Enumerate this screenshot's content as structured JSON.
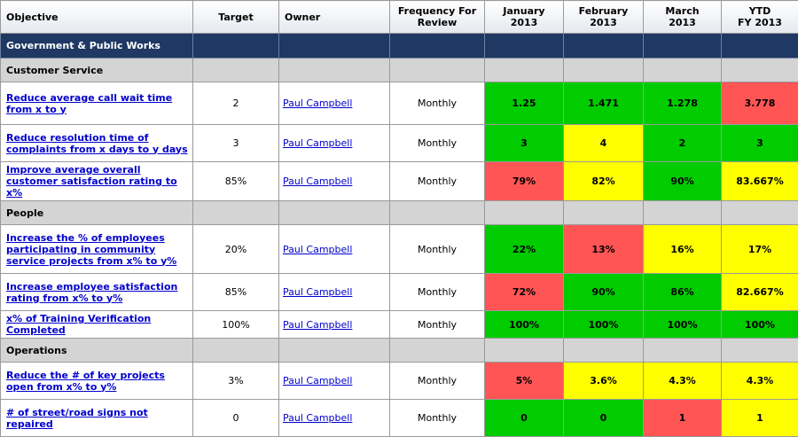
{
  "headers": {
    "objective": "Objective",
    "target": "Target",
    "owner": "Owner",
    "frequency": [
      "Frequency For",
      "Review"
    ],
    "jan": [
      "January",
      "2013"
    ],
    "feb": [
      "February",
      "2013"
    ],
    "mar": [
      "March",
      "2013"
    ],
    "ytd": [
      "YTD",
      "FY 2013"
    ]
  },
  "department": "Government & Public Works",
  "colors": {
    "green": "#00cc00",
    "yellow": "#ffff00",
    "red": "#ff5555",
    "header_bg": "#1f3864"
  },
  "groups": [
    {
      "name": "Customer Service",
      "rows": [
        {
          "objective": "Reduce average call wait time from x to y",
          "target": "2",
          "owner": "Paul Campbell",
          "frequency": "Monthly",
          "jan": {
            "v": "1.25",
            "s": "green"
          },
          "feb": {
            "v": "1.471",
            "s": "green"
          },
          "mar": {
            "v": "1.278",
            "s": "green"
          },
          "ytd": {
            "v": "3.778",
            "s": "red"
          }
        },
        {
          "objective": "Reduce resolution time of complaints from x days to y days",
          "target": "3",
          "owner": "Paul Campbell",
          "frequency": "Monthly",
          "jan": {
            "v": "3",
            "s": "green"
          },
          "feb": {
            "v": "4",
            "s": "yellow"
          },
          "mar": {
            "v": "2",
            "s": "green"
          },
          "ytd": {
            "v": "3",
            "s": "green"
          }
        },
        {
          "objective": "Improve average overall customer satisfaction rating to x%",
          "target": "85%",
          "owner": "Paul Campbell",
          "frequency": "Monthly",
          "jan": {
            "v": "79%",
            "s": "red"
          },
          "feb": {
            "v": "82%",
            "s": "yellow"
          },
          "mar": {
            "v": "90%",
            "s": "green"
          },
          "ytd": {
            "v": "83.667%",
            "s": "yellow"
          }
        }
      ]
    },
    {
      "name": "People",
      "rows": [
        {
          "objective": "Increase the % of employees participating in community service projects from x% to y%",
          "target": "20%",
          "owner": "Paul Campbell",
          "frequency": "Monthly",
          "jan": {
            "v": "22%",
            "s": "green"
          },
          "feb": {
            "v": "13%",
            "s": "red"
          },
          "mar": {
            "v": "16%",
            "s": "yellow"
          },
          "ytd": {
            "v": "17%",
            "s": "yellow"
          }
        },
        {
          "objective": "Increase employee satisfaction rating from x% to y%",
          "target": "85%",
          "owner": "Paul Campbell",
          "frequency": "Monthly",
          "jan": {
            "v": "72%",
            "s": "red"
          },
          "feb": {
            "v": "90%",
            "s": "green"
          },
          "mar": {
            "v": "86%",
            "s": "green"
          },
          "ytd": {
            "v": "82.667%",
            "s": "yellow"
          }
        },
        {
          "objective": "x% of Training Verification Completed",
          "target": "100%",
          "owner": "Paul Campbell",
          "frequency": "Monthly",
          "jan": {
            "v": "100%",
            "s": "green"
          },
          "feb": {
            "v": "100%",
            "s": "green"
          },
          "mar": {
            "v": "100%",
            "s": "green"
          },
          "ytd": {
            "v": "100%",
            "s": "green"
          }
        }
      ]
    },
    {
      "name": "Operations",
      "rows": [
        {
          "objective": "Reduce the # of key projects open from x% to y%",
          "target": "3%",
          "owner": "Paul Campbell",
          "frequency": "Monthly",
          "jan": {
            "v": "5%",
            "s": "red"
          },
          "feb": {
            "v": "3.6%",
            "s": "yellow"
          },
          "mar": {
            "v": "4.3%",
            "s": "yellow"
          },
          "ytd": {
            "v": "4.3%",
            "s": "yellow"
          }
        },
        {
          "objective": "# of street/road signs not repaired",
          "target": "0",
          "owner": "Paul Campbell",
          "frequency": "Monthly",
          "jan": {
            "v": "0",
            "s": "green"
          },
          "feb": {
            "v": "0",
            "s": "green"
          },
          "mar": {
            "v": "1",
            "s": "red"
          },
          "ytd": {
            "v": "1",
            "s": "yellow"
          }
        }
      ]
    }
  ]
}
